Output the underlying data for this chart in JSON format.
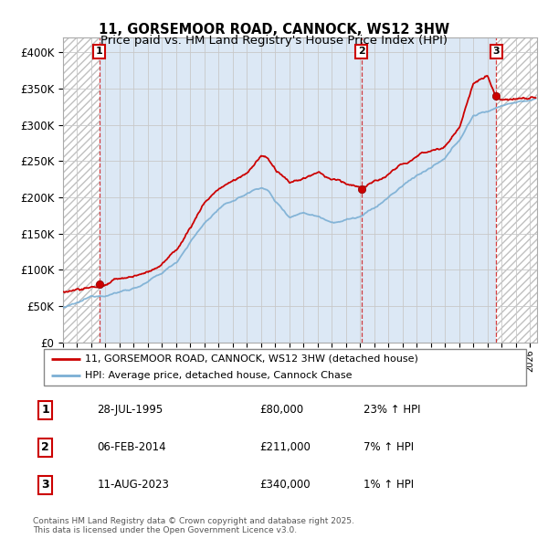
{
  "title_line1": "11, GORSEMOOR ROAD, CANNOCK, WS12 3HW",
  "title_line2": "Price paid vs. HM Land Registry's House Price Index (HPI)",
  "ylim": [
    0,
    420000
  ],
  "yticks": [
    0,
    50000,
    100000,
    150000,
    200000,
    250000,
    300000,
    350000,
    400000
  ],
  "xlim_start": 1993.0,
  "xlim_end": 2026.5,
  "sale_dates": [
    1995.57,
    2014.09,
    2023.61
  ],
  "sale_prices": [
    80000,
    211000,
    340000
  ],
  "sale_labels": [
    "1",
    "2",
    "3"
  ],
  "sale_hpi_pct": [
    "23% ↑ HPI",
    "7% ↑ HPI",
    "1% ↑ HPI"
  ],
  "sale_date_strs": [
    "28-JUL-1995",
    "06-FEB-2014",
    "11-AUG-2023"
  ],
  "line_color_red": "#cc0000",
  "line_color_blue": "#7bafd4",
  "legend_label_red": "11, GORSEMOOR ROAD, CANNOCK, WS12 3HW (detached house)",
  "legend_label_blue": "HPI: Average price, detached house, Cannock Chase",
  "footnote": "Contains HM Land Registry data © Crown copyright and database right 2025.\nThis data is licensed under the Open Government Licence v3.0.",
  "title_fontsize": 10.5,
  "subtitle_fontsize": 9.5,
  "hpi_segments": [
    [
      1993,
      48000
    ],
    [
      1994,
      52000
    ],
    [
      1995,
      60000
    ],
    [
      1996,
      65000
    ],
    [
      1997,
      70000
    ],
    [
      1998,
      76000
    ],
    [
      1999,
      84000
    ],
    [
      2000,
      95000
    ],
    [
      2001,
      110000
    ],
    [
      2002,
      140000
    ],
    [
      2003,
      165000
    ],
    [
      2004,
      185000
    ],
    [
      2005,
      195000
    ],
    [
      2006,
      205000
    ],
    [
      2007,
      215000
    ],
    [
      2007.5,
      210000
    ],
    [
      2008,
      195000
    ],
    [
      2009,
      175000
    ],
    [
      2010,
      182000
    ],
    [
      2011,
      178000
    ],
    [
      2012,
      172000
    ],
    [
      2013,
      176000
    ],
    [
      2014,
      180000
    ],
    [
      2015,
      190000
    ],
    [
      2016,
      205000
    ],
    [
      2017,
      220000
    ],
    [
      2018,
      235000
    ],
    [
      2019,
      245000
    ],
    [
      2020,
      255000
    ],
    [
      2021,
      280000
    ],
    [
      2022,
      315000
    ],
    [
      2023,
      320000
    ],
    [
      2024,
      330000
    ],
    [
      2025,
      335000
    ],
    [
      2026,
      338000
    ]
  ],
  "red_segments": [
    [
      1993,
      70000
    ],
    [
      1994,
      75000
    ],
    [
      1995.57,
      80000
    ],
    [
      1996,
      82000
    ],
    [
      1997,
      88000
    ],
    [
      1998,
      92000
    ],
    [
      1999,
      98000
    ],
    [
      2000,
      110000
    ],
    [
      2001,
      128000
    ],
    [
      2002,
      160000
    ],
    [
      2003,
      195000
    ],
    [
      2004,
      215000
    ],
    [
      2005,
      225000
    ],
    [
      2006,
      235000
    ],
    [
      2007,
      260000
    ],
    [
      2007.5,
      255000
    ],
    [
      2008,
      240000
    ],
    [
      2009,
      218000
    ],
    [
      2010,
      225000
    ],
    [
      2011,
      232000
    ],
    [
      2012,
      220000
    ],
    [
      2013,
      215000
    ],
    [
      2014.09,
      211000
    ],
    [
      2015,
      218000
    ],
    [
      2016,
      228000
    ],
    [
      2017,
      240000
    ],
    [
      2018,
      252000
    ],
    [
      2019,
      262000
    ],
    [
      2020,
      270000
    ],
    [
      2021,
      295000
    ],
    [
      2022,
      355000
    ],
    [
      2023,
      365000
    ],
    [
      2023.61,
      340000
    ],
    [
      2024,
      338000
    ],
    [
      2025,
      340000
    ],
    [
      2026,
      342000
    ]
  ]
}
